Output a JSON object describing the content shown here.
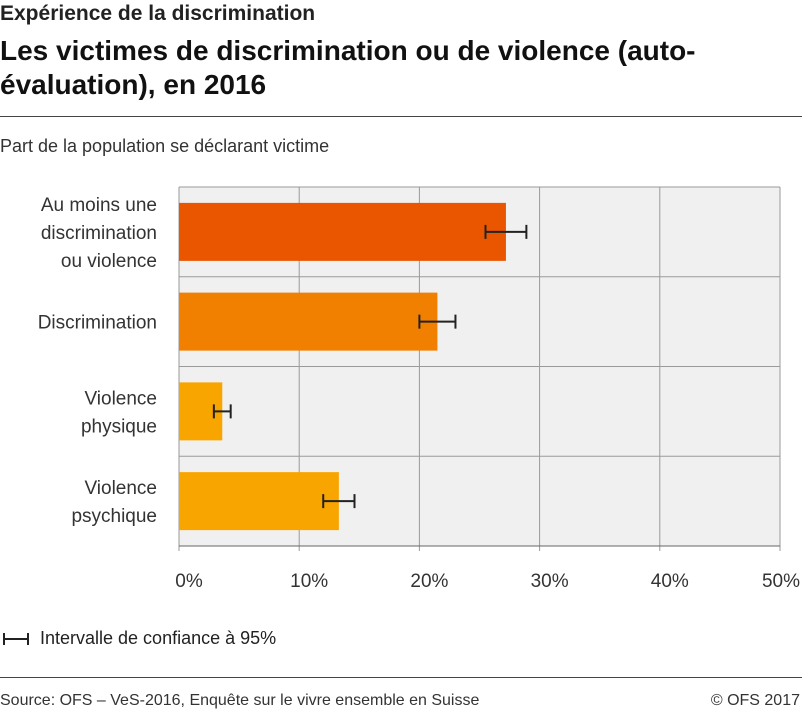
{
  "header": {
    "supertitle": "Expérience de la discrimination",
    "title": "Les victimes de discrimination ou de violence (auto-évaluation), en 2016"
  },
  "subtitle": "Part de la population se déclarant victime",
  "legend": {
    "ci_label": "Intervalle de confiance à 95%"
  },
  "footer": {
    "source": "Source: OFS – VeS-2016, Enquête sur le vivre ensemble en Suisse",
    "copyright": "© OFS 2017"
  },
  "chart_data": {
    "type": "bar",
    "orientation": "horizontal",
    "categories": [
      [
        "Au moins une",
        "discrimination",
        "ou violence"
      ],
      [
        "Discrimination"
      ],
      [
        "Violence",
        "physique"
      ],
      [
        "Violence",
        "psychique"
      ]
    ],
    "values": [
      27.2,
      21.5,
      3.6,
      13.3
    ],
    "ci_low": [
      25.5,
      20.0,
      2.9,
      12.0
    ],
    "ci_high": [
      28.9,
      23.0,
      4.3,
      14.6
    ],
    "bar_colors": [
      "#ea5600",
      "#f28000",
      "#f9a500",
      "#f9a500"
    ],
    "xlim": [
      0,
      50
    ],
    "xticks": [
      0,
      10,
      20,
      30,
      40,
      50
    ],
    "tick_suffix": "%",
    "grid": true,
    "background": "#f0f0f0"
  }
}
